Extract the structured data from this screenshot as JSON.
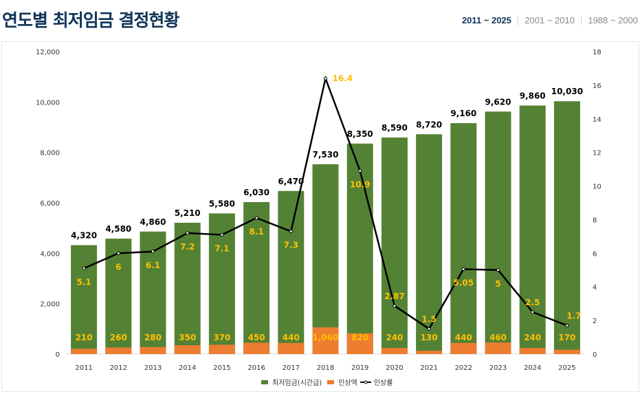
{
  "header": {
    "title": "연도별 최저임금 결정현황",
    "tabs": [
      {
        "label": "2011 ~ 2025",
        "active": true
      },
      {
        "label": "2001 ~ 2010",
        "active": false
      },
      {
        "label": "1988 ~ 2000",
        "active": false
      }
    ]
  },
  "chart_data": {
    "type": "bar",
    "categories": [
      "2011",
      "2012",
      "2013",
      "2014",
      "2015",
      "2016",
      "2017",
      "2018",
      "2019",
      "2020",
      "2021",
      "2022",
      "2023",
      "2024",
      "2025"
    ],
    "series": [
      {
        "name": "최저임금(시간급)",
        "type": "bar",
        "axis": "left",
        "color": "#548235",
        "values": [
          4320,
          4580,
          4860,
          5210,
          5580,
          6030,
          6470,
          7530,
          8350,
          8590,
          8720,
          9160,
          9620,
          9860,
          10030
        ],
        "labels": [
          "4,320",
          "4,580",
          "4,860",
          "5,210",
          "5,580",
          "6,030",
          "6,470",
          "7,530",
          "8,350",
          "8,590",
          "8,720",
          "9,160",
          "9,620",
          "9,860",
          "10,030"
        ]
      },
      {
        "name": "인상액",
        "type": "bar",
        "axis": "left",
        "color": "#ed7d31",
        "values": [
          210,
          260,
          280,
          350,
          370,
          450,
          440,
          1060,
          820,
          240,
          130,
          440,
          460,
          240,
          170
        ],
        "labels": [
          "210",
          "260",
          "280",
          "350",
          "370",
          "450",
          "440",
          "1,060",
          "820",
          "240",
          "130",
          "440",
          "460",
          "240",
          "170"
        ]
      },
      {
        "name": "인상률",
        "type": "line",
        "axis": "right",
        "color": "#000000",
        "values": [
          5.1,
          6,
          6.1,
          7.2,
          7.1,
          8.1,
          7.3,
          16.4,
          10.9,
          2.87,
          1.5,
          5.05,
          5,
          2.5,
          1.7
        ],
        "labels": [
          "5.1",
          "6",
          "6.1",
          "7.2",
          "7.1",
          "8.1",
          "7.3",
          "16.4",
          "10.9",
          "2.87",
          "1.5",
          "5.05",
          "5",
          "2.5",
          "1.7"
        ]
      }
    ],
    "ylim": [
      0,
      12000
    ],
    "yticks": [
      "0",
      "2,000",
      "4,000",
      "6,000",
      "8,000",
      "10,000",
      "12,000"
    ],
    "y2lim": [
      0,
      18
    ],
    "y2ticks": [
      "0",
      "2",
      "4",
      "6",
      "8",
      "10",
      "12",
      "14",
      "16",
      "18"
    ],
    "label_color": "#ffc000",
    "grid": false,
    "legend": "bottom"
  }
}
